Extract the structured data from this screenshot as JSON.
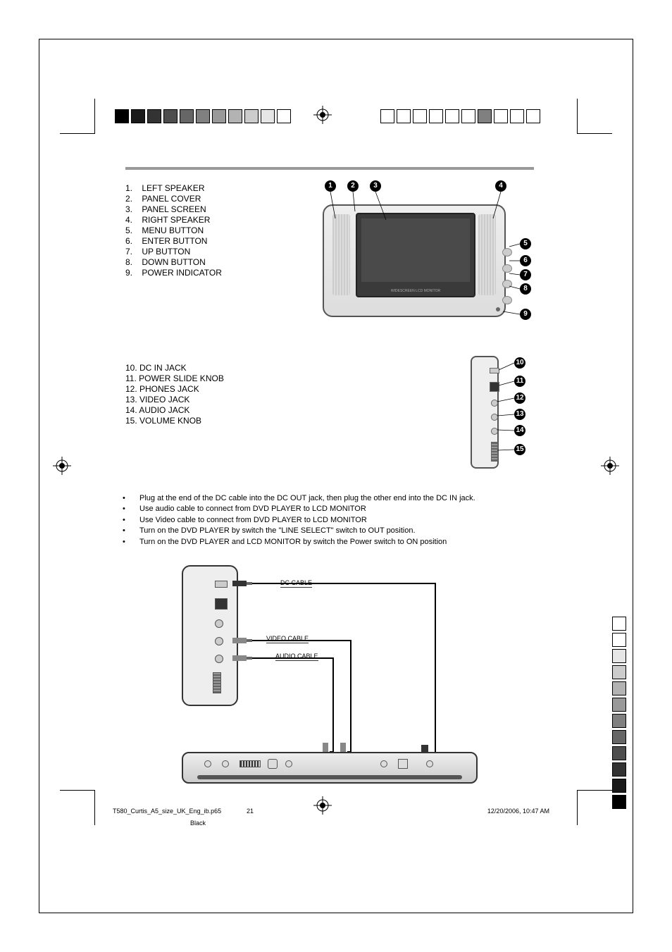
{
  "list1": [
    {
      "n": "1.",
      "t": "LEFT SPEAKER"
    },
    {
      "n": "2.",
      "t": "PANEL COVER"
    },
    {
      "n": "3.",
      "t": "PANEL SCREEN"
    },
    {
      "n": "4.",
      "t": "RIGHT SPEAKER"
    },
    {
      "n": "5.",
      "t": "MENU BUTTON"
    },
    {
      "n": "6.",
      "t": "ENTER BUTTON"
    },
    {
      "n": "7.",
      "t": "UP BUTTON"
    },
    {
      "n": "8.",
      "t": "DOWN BUTTON"
    },
    {
      "n": "9.",
      "t": "POWER INDICATOR"
    }
  ],
  "list2": [
    {
      "t": "10. DC IN JACK"
    },
    {
      "t": "11. POWER SLIDE KNOB"
    },
    {
      "t": "12. PHONES JACK"
    },
    {
      "t": "13. VIDEO JACK"
    },
    {
      "t": "14. AUDIO JACK"
    },
    {
      "t": "15. VOLUME KNOB"
    }
  ],
  "bullets": [
    "Plug at the end of the DC cable into the DC OUT jack, then plug the other end into the DC IN jack.",
    "Use audio cable to connect from DVD PLAYER to LCD MONITOR",
    "Use Video cable to connect from DVD PLAYER to LCD MONITOR",
    "Turn on the DVD PLAYER by switch the \"LINE SELECT\" switch to OUT position.",
    "Turn on the DVD PLAYER and LCD MONITOR by switch the Power switch to ON position"
  ],
  "callouts1": [
    "1",
    "2",
    "3",
    "4",
    "5",
    "6",
    "7",
    "8",
    "9"
  ],
  "callouts2": [
    "10",
    "11",
    "12",
    "13",
    "14",
    "15"
  ],
  "cable_labels": {
    "dc": "DC CABLE",
    "video": "VIDEO CABLE",
    "audio": "AUDIO CABLE"
  },
  "monitor_screen_label": "WIDESCREEN LCD MONITOR",
  "footer": {
    "filename": "T580_Curtis_A5_size_UK_Eng_ib.p65",
    "page": "21",
    "date": "12/20/2006, 10:47 AM",
    "ink": "Black"
  },
  "colors": {
    "bar_top_left": [
      "#000000",
      "#1a1a1a",
      "#333333",
      "#4d4d4d",
      "#666666",
      "#808080",
      "#999999",
      "#b3b3b3",
      "#cccccc",
      "#e6e6e6",
      "#ffffff"
    ],
    "bar_top_right": [
      "#ffffff",
      "#ffffff",
      "#ffffff",
      "#ffffff",
      "#ffffff",
      "#ffffff",
      "#808080",
      "#ffffff",
      "#ffffff",
      "#ffffff"
    ],
    "bar_side": [
      "#ffffff",
      "#ffffff",
      "#e6e6e6",
      "#cccccc",
      "#b3b3b3",
      "#999999",
      "#808080",
      "#666666",
      "#4d4d4d",
      "#333333",
      "#1a1a1a",
      "#000000"
    ]
  }
}
